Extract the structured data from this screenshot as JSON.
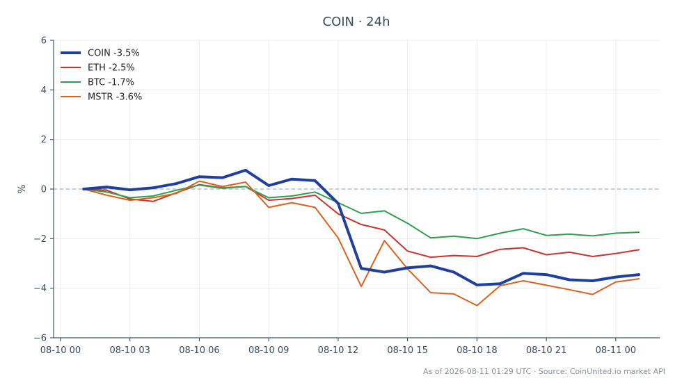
{
  "chart_data": {
    "type": "line",
    "title": "COIN · 24h",
    "xlabel": "",
    "ylabel": "%",
    "ylim": [
      -6,
      6
    ],
    "xlim": [
      -0.3,
      25.9
    ],
    "yticks": [
      -6,
      -4,
      -2,
      0,
      2,
      4,
      6
    ],
    "ytick_labels": [
      "−6",
      "−4",
      "−2",
      "0",
      "2",
      "4",
      "6"
    ],
    "xticks": [
      {
        "label": "08-10 00",
        "at": 0
      },
      {
        "label": "08-10 03",
        "at": 3
      },
      {
        "label": "08-10 06",
        "at": 6
      },
      {
        "label": "08-10 09",
        "at": 9
      },
      {
        "label": "08-10 12",
        "at": 12
      },
      {
        "label": "08-10 15",
        "at": 15
      },
      {
        "label": "08-10 18",
        "at": 18
      },
      {
        "label": "08-10 21",
        "at": 21
      },
      {
        "label": "08-11 00",
        "at": 24
      }
    ],
    "grid": true,
    "zero_line": true,
    "legend_position": "top-left",
    "x": [
      1,
      2,
      3,
      4,
      5,
      6,
      7,
      8,
      9,
      10,
      11,
      12,
      13,
      14,
      15,
      16,
      17,
      18,
      19,
      20,
      21,
      22,
      23,
      24,
      25
    ],
    "series": [
      {
        "name": "COIN -3.5%",
        "color": "#1f3fa0",
        "width": 4,
        "values": [
          0.0,
          0.08,
          -0.03,
          0.05,
          0.22,
          0.5,
          0.46,
          0.76,
          0.14,
          0.4,
          0.34,
          -0.58,
          -3.2,
          -3.35,
          -3.18,
          -3.1,
          -3.35,
          -3.87,
          -3.82,
          -3.4,
          -3.45,
          -3.66,
          -3.7,
          -3.55,
          -3.45
        ]
      },
      {
        "name": "ETH -2.5%",
        "color": "#d0312d",
        "width": 2,
        "values": [
          0.0,
          -0.05,
          -0.4,
          -0.5,
          -0.15,
          0.18,
          0.05,
          0.1,
          -0.45,
          -0.38,
          -0.25,
          -1.0,
          -1.43,
          -1.65,
          -2.5,
          -2.75,
          -2.68,
          -2.72,
          -2.43,
          -2.37,
          -2.65,
          -2.55,
          -2.72,
          -2.6,
          -2.45
        ]
      },
      {
        "name": "BTC -1.7%",
        "color": "#2ca04c",
        "width": 2,
        "values": [
          0.0,
          -0.12,
          -0.35,
          -0.28,
          -0.05,
          0.16,
          0.03,
          0.1,
          -0.35,
          -0.28,
          -0.12,
          -0.55,
          -0.98,
          -0.88,
          -1.38,
          -1.97,
          -1.9,
          -2.0,
          -1.78,
          -1.6,
          -1.87,
          -1.82,
          -1.89,
          -1.78,
          -1.74
        ]
      },
      {
        "name": "MSTR -3.6%",
        "color": "#e0601a",
        "width": 2,
        "values": [
          0.0,
          -0.25,
          -0.45,
          -0.35,
          -0.18,
          0.32,
          0.1,
          0.28,
          -0.74,
          -0.55,
          -0.74,
          -1.97,
          -3.93,
          -2.08,
          -3.22,
          -4.18,
          -4.23,
          -4.7,
          -3.9,
          -3.7,
          -3.88,
          -4.06,
          -4.25,
          -3.75,
          -3.62
        ]
      }
    ]
  },
  "footer": {
    "source_text": "As of 2026-08-11 01:29 UTC · Source: CoinUnited.io market API"
  }
}
